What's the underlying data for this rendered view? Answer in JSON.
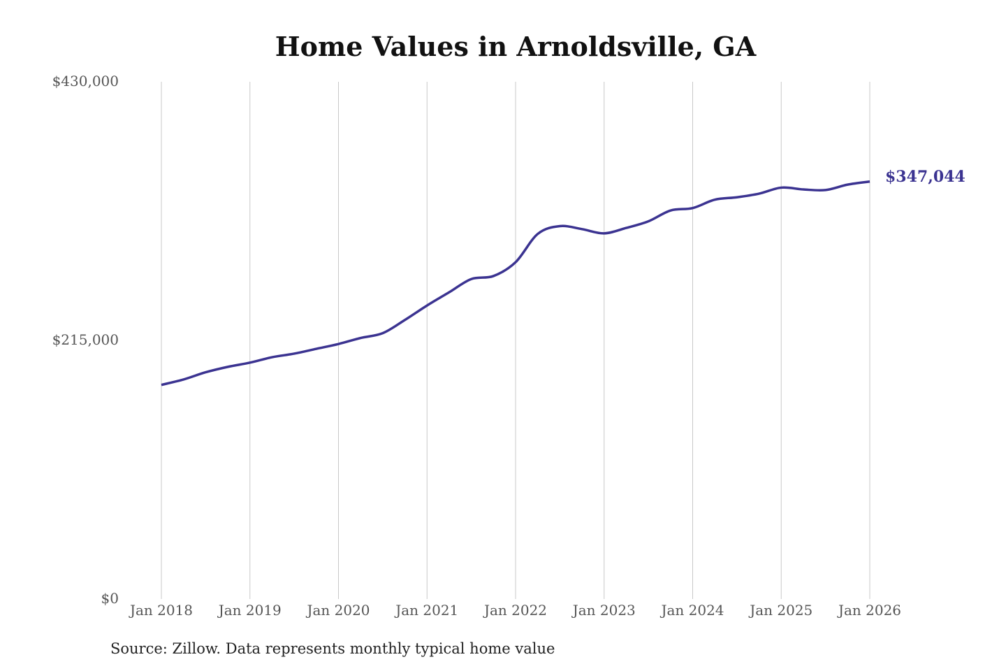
{
  "chart_data": {
    "type": "line",
    "title": "Home Values in Arnoldsville, GA",
    "source": "Source: Zillow. Data represents monthly typical home value",
    "xlabel": "",
    "ylabel": "",
    "ylim": [
      0,
      430000
    ],
    "y_ticks": [
      0,
      215000,
      430000
    ],
    "y_tick_labels": [
      "$0",
      "$215,000",
      "$430,000"
    ],
    "x_ticks": [
      "2018-01",
      "2019-01",
      "2020-01",
      "2021-01",
      "2022-01",
      "2023-01",
      "2024-01",
      "2025-01",
      "2026-01"
    ],
    "x_tick_labels": [
      "Jan 2018",
      "Jan 2019",
      "Jan 2020",
      "Jan 2021",
      "Jan 2022",
      "Jan 2023",
      "Jan 2024",
      "Jan 2025",
      "Jan 2026"
    ],
    "grid": "vertical",
    "line_color": "#3b3391",
    "end_label": "$347,044",
    "x": [
      "2018-01",
      "2018-04",
      "2018-07",
      "2018-10",
      "2019-01",
      "2019-04",
      "2019-07",
      "2019-10",
      "2020-01",
      "2020-04",
      "2020-07",
      "2020-10",
      "2021-01",
      "2021-04",
      "2021-07",
      "2021-10",
      "2022-01",
      "2022-04",
      "2022-07",
      "2022-10",
      "2023-01",
      "2023-04",
      "2023-07",
      "2023-10",
      "2024-01",
      "2024-04",
      "2024-07",
      "2024-10",
      "2025-01",
      "2025-04",
      "2025-07",
      "2025-10",
      "2026-01"
    ],
    "values": [
      178000,
      182500,
      188500,
      193000,
      196500,
      201000,
      204000,
      208000,
      212000,
      217000,
      221000,
      232000,
      244000,
      255000,
      266000,
      268500,
      280000,
      303500,
      310000,
      307500,
      304000,
      308500,
      314000,
      323000,
      325000,
      332000,
      334000,
      337000,
      342000,
      340500,
      340000,
      344500,
      347044
    ]
  }
}
